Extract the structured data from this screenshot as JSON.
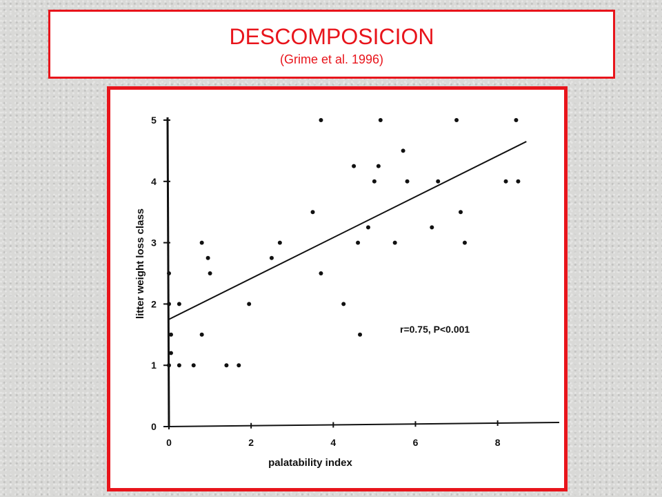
{
  "header": {
    "title": "DESCOMPOSICION",
    "subtitle": "(Grime et al. 1996)"
  },
  "colors": {
    "accent": "#e8141b",
    "ink": "#111111"
  },
  "chart_data": {
    "type": "scatter",
    "title": "",
    "xlabel": "palatability index",
    "ylabel": "litter weight loss class",
    "xlim": [
      0,
      9.5
    ],
    "ylim": [
      0,
      5
    ],
    "xticks": [
      0,
      2,
      4,
      6,
      8
    ],
    "yticks": [
      0,
      1,
      2,
      3,
      4,
      5
    ],
    "annotation": "r=0.75, P<0.001",
    "grid": false,
    "series": [
      {
        "points": [
          [
            0.0,
            2.5
          ],
          [
            0.0,
            2.0
          ],
          [
            0.05,
            1.5
          ],
          [
            0.05,
            1.2
          ],
          [
            0.0,
            1.0
          ],
          [
            0.25,
            2.0
          ],
          [
            0.25,
            1.0
          ],
          [
            0.6,
            1.0
          ],
          [
            0.8,
            3.0
          ],
          [
            0.8,
            1.5
          ],
          [
            0.95,
            2.75
          ],
          [
            1.0,
            2.5
          ],
          [
            1.4,
            1.0
          ],
          [
            1.7,
            1.0
          ],
          [
            1.95,
            2.0
          ],
          [
            2.5,
            2.75
          ],
          [
            2.7,
            3.0
          ],
          [
            3.5,
            3.5
          ],
          [
            3.7,
            5.0
          ],
          [
            3.7,
            2.5
          ],
          [
            4.25,
            2.0
          ],
          [
            4.5,
            4.25
          ],
          [
            4.6,
            3.0
          ],
          [
            4.65,
            1.5
          ],
          [
            4.85,
            3.25
          ],
          [
            5.0,
            4.0
          ],
          [
            5.1,
            4.25
          ],
          [
            5.15,
            5.0
          ],
          [
            5.5,
            3.0
          ],
          [
            5.7,
            4.5
          ],
          [
            5.8,
            4.0
          ],
          [
            6.4,
            3.25
          ],
          [
            6.55,
            4.0
          ],
          [
            7.0,
            5.0
          ],
          [
            7.1,
            3.5
          ],
          [
            7.2,
            3.0
          ],
          [
            8.2,
            4.0
          ],
          [
            8.45,
            5.0
          ],
          [
            8.5,
            4.0
          ]
        ]
      }
    ],
    "regression": {
      "x": [
        0,
        8.7
      ],
      "y": [
        1.75,
        4.65
      ]
    }
  }
}
